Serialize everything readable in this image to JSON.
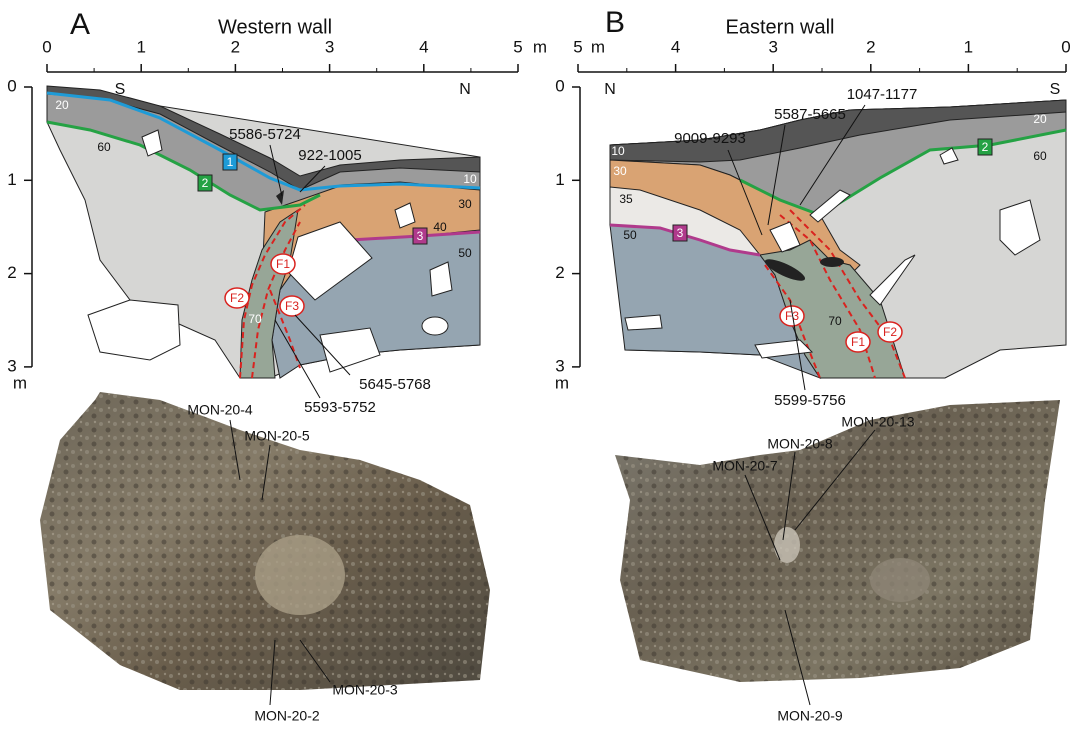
{
  "panel_a": {
    "letter": "A",
    "title": "Western wall",
    "scale_ticks": [
      0,
      1,
      2,
      3,
      4,
      5
    ],
    "scale_unit": "m",
    "depth_ticks": [
      0,
      1,
      2,
      3
    ],
    "depth_unit": "m",
    "compass": {
      "left": "S",
      "right": "N"
    },
    "layers": [
      "20",
      "60",
      "10",
      "30",
      "40",
      "50",
      "70"
    ],
    "boundaries": [
      "1",
      "2",
      "3"
    ],
    "faults": [
      "F1",
      "F2",
      "F3"
    ],
    "dates": [
      "5586-5724",
      "922-1005",
      "5645-5768",
      "5593-5752"
    ],
    "samples": [
      "MON-20-4",
      "MON-20-5",
      "MON-20-3",
      "MON-20-2"
    ]
  },
  "panel_b": {
    "letter": "B",
    "title": "Eastern wall",
    "scale_ticks": [
      5,
      4,
      3,
      2,
      1,
      0
    ],
    "scale_unit": "m",
    "depth_ticks": [
      0,
      1,
      2,
      3
    ],
    "depth_unit": "m",
    "compass": {
      "left": "N",
      "right": "S"
    },
    "layers": [
      "20",
      "60",
      "10",
      "30",
      "35",
      "50",
      "70"
    ],
    "boundaries": [
      "2",
      "3"
    ],
    "faults": [
      "F3",
      "F1",
      "F2"
    ],
    "dates": [
      "9009-9293",
      "5587-5665",
      "1047-1177",
      "5599-5756"
    ],
    "samples": [
      "MON-20-13",
      "MON-20-8",
      "MON-20-7",
      "MON-20-9"
    ]
  }
}
